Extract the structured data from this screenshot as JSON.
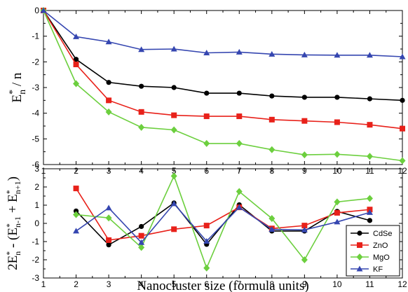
{
  "chart_data": [
    {
      "type": "line",
      "panel": "top",
      "x": [
        1,
        2,
        3,
        4,
        5,
        6,
        7,
        8,
        9,
        10,
        11,
        12
      ],
      "xlim": [
        1,
        12
      ],
      "ylim": [
        -6,
        0
      ],
      "xticks": [
        "1",
        "2",
        "3",
        "4",
        "5",
        "6",
        "7",
        "8",
        "9",
        "10",
        "11",
        "12"
      ],
      "yticks": [
        "0",
        "-1",
        "-2",
        "-3",
        "-4",
        "-5",
        "-6"
      ],
      "ylabel": {
        "main": "E",
        "sup": "*",
        "sub": "n",
        "rest": " / n"
      },
      "series": [
        {
          "name": "CdSe",
          "color": "#000000",
          "marker": "circle",
          "values": [
            0,
            -1.9,
            -2.8,
            -2.95,
            -3.0,
            -3.22,
            -3.22,
            -3.33,
            -3.38,
            -3.38,
            -3.44,
            -3.5
          ]
        },
        {
          "name": "ZnO",
          "color": "#e8211a",
          "marker": "square",
          "values": [
            0,
            -2.1,
            -3.5,
            -3.95,
            -4.08,
            -4.12,
            -4.12,
            -4.25,
            -4.3,
            -4.35,
            -4.45,
            -4.6
          ]
        },
        {
          "name": "MgO",
          "color": "#6ccf3e",
          "marker": "diamond",
          "values": [
            0,
            -2.85,
            -3.95,
            -4.55,
            -4.65,
            -5.18,
            -5.18,
            -5.42,
            -5.62,
            -5.6,
            -5.68,
            -5.85
          ]
        },
        {
          "name": "KF",
          "color": "#3546b0",
          "marker": "triangle",
          "values": [
            0,
            -1.02,
            -1.22,
            -1.52,
            -1.5,
            -1.65,
            -1.62,
            -1.7,
            -1.73,
            -1.74,
            -1.74,
            -1.8
          ]
        }
      ]
    },
    {
      "type": "line",
      "panel": "bottom",
      "x": [
        2,
        3,
        4,
        5,
        6,
        7,
        8,
        9,
        10,
        11
      ],
      "xlim": [
        1,
        12
      ],
      "ylim": [
        -3,
        3
      ],
      "xticks": [
        "1",
        "2",
        "3",
        "4",
        "5",
        "6",
        "7",
        "8",
        "9",
        "10",
        "11",
        "12"
      ],
      "yticks": [
        "3",
        "2",
        "1",
        "0",
        "-1",
        "-2",
        "-3"
      ],
      "xlabel": "Nanocluster size (formula units)",
      "ylabel": {
        "a": "2E",
        "a_sup": "*",
        "a_sub": "n",
        "b": " - (E",
        "b_sup": "*",
        "b_sub": "n-1",
        "c": " + E",
        "c_sup": "*",
        "c_sub": "n+1",
        "d": ")"
      },
      "legend_position": "bottom-right",
      "series": [
        {
          "name": "CdSe",
          "color": "#000000",
          "marker": "circle",
          "values": [
            0.68,
            -1.18,
            -0.17,
            1.12,
            -1.15,
            1.02,
            -0.42,
            -0.42,
            0.66,
            0.16
          ]
        },
        {
          "name": "ZnO",
          "color": "#e8211a",
          "marker": "square",
          "values": [
            1.92,
            -0.92,
            -0.68,
            -0.32,
            -0.12,
            0.88,
            -0.28,
            -0.12,
            0.58,
            0.76
          ]
        },
        {
          "name": "MgO",
          "color": "#6ccf3e",
          "marker": "diamond",
          "values": [
            0.48,
            0.3,
            -1.32,
            2.6,
            -2.45,
            1.75,
            0.27,
            -2.0,
            1.18,
            1.37
          ]
        },
        {
          "name": "KF",
          "color": "#3546b0",
          "marker": "triangle",
          "values": [
            -0.42,
            0.85,
            -1.05,
            1.08,
            -0.98,
            0.88,
            -0.33,
            -0.36,
            0.08,
            0.6
          ]
        }
      ]
    }
  ]
}
